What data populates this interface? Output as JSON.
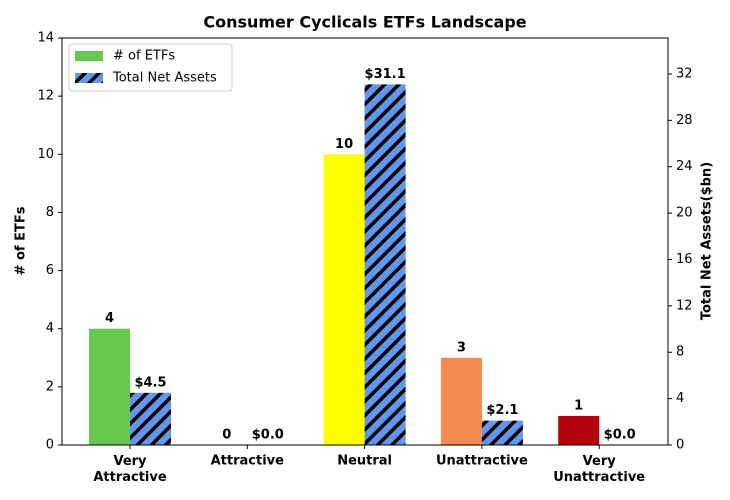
{
  "chart_data": {
    "type": "bar",
    "title": "Consumer Cyclicals ETFs Landscape",
    "categories": [
      "Very Attractive",
      "Attractive",
      "Neutral",
      "Unattractive",
      "Very Unattractive"
    ],
    "series": [
      {
        "name": "# of ETFs",
        "color": "#66c94f",
        "colors": [
          "#66c94f",
          "#66c94f",
          "#ffff00",
          "#f5894f",
          "#b5000e"
        ],
        "values": [
          4,
          0,
          10,
          3,
          1
        ]
      },
      {
        "name": "Total Net Assets",
        "color": "#6495ed",
        "hatch": "#000000",
        "axis": "y2",
        "values": [
          4.5,
          0,
          31.1,
          2.1,
          0.0
        ],
        "value_labels": [
          "$4.5",
          "$0.0",
          "$31.1",
          "$2.1",
          "$0.0"
        ]
      }
    ],
    "ylabel": "# of ETFs",
    "y2label": "Total Net Assets($bn)",
    "ylim": [
      0,
      14
    ],
    "yticks": [
      0,
      2,
      4,
      6,
      8,
      10,
      12,
      14
    ],
    "y2lim": [
      0,
      35.1
    ],
    "y2ticks": [
      0,
      4,
      8,
      12,
      16,
      20,
      24,
      28,
      32
    ],
    "legend": "upper left"
  }
}
